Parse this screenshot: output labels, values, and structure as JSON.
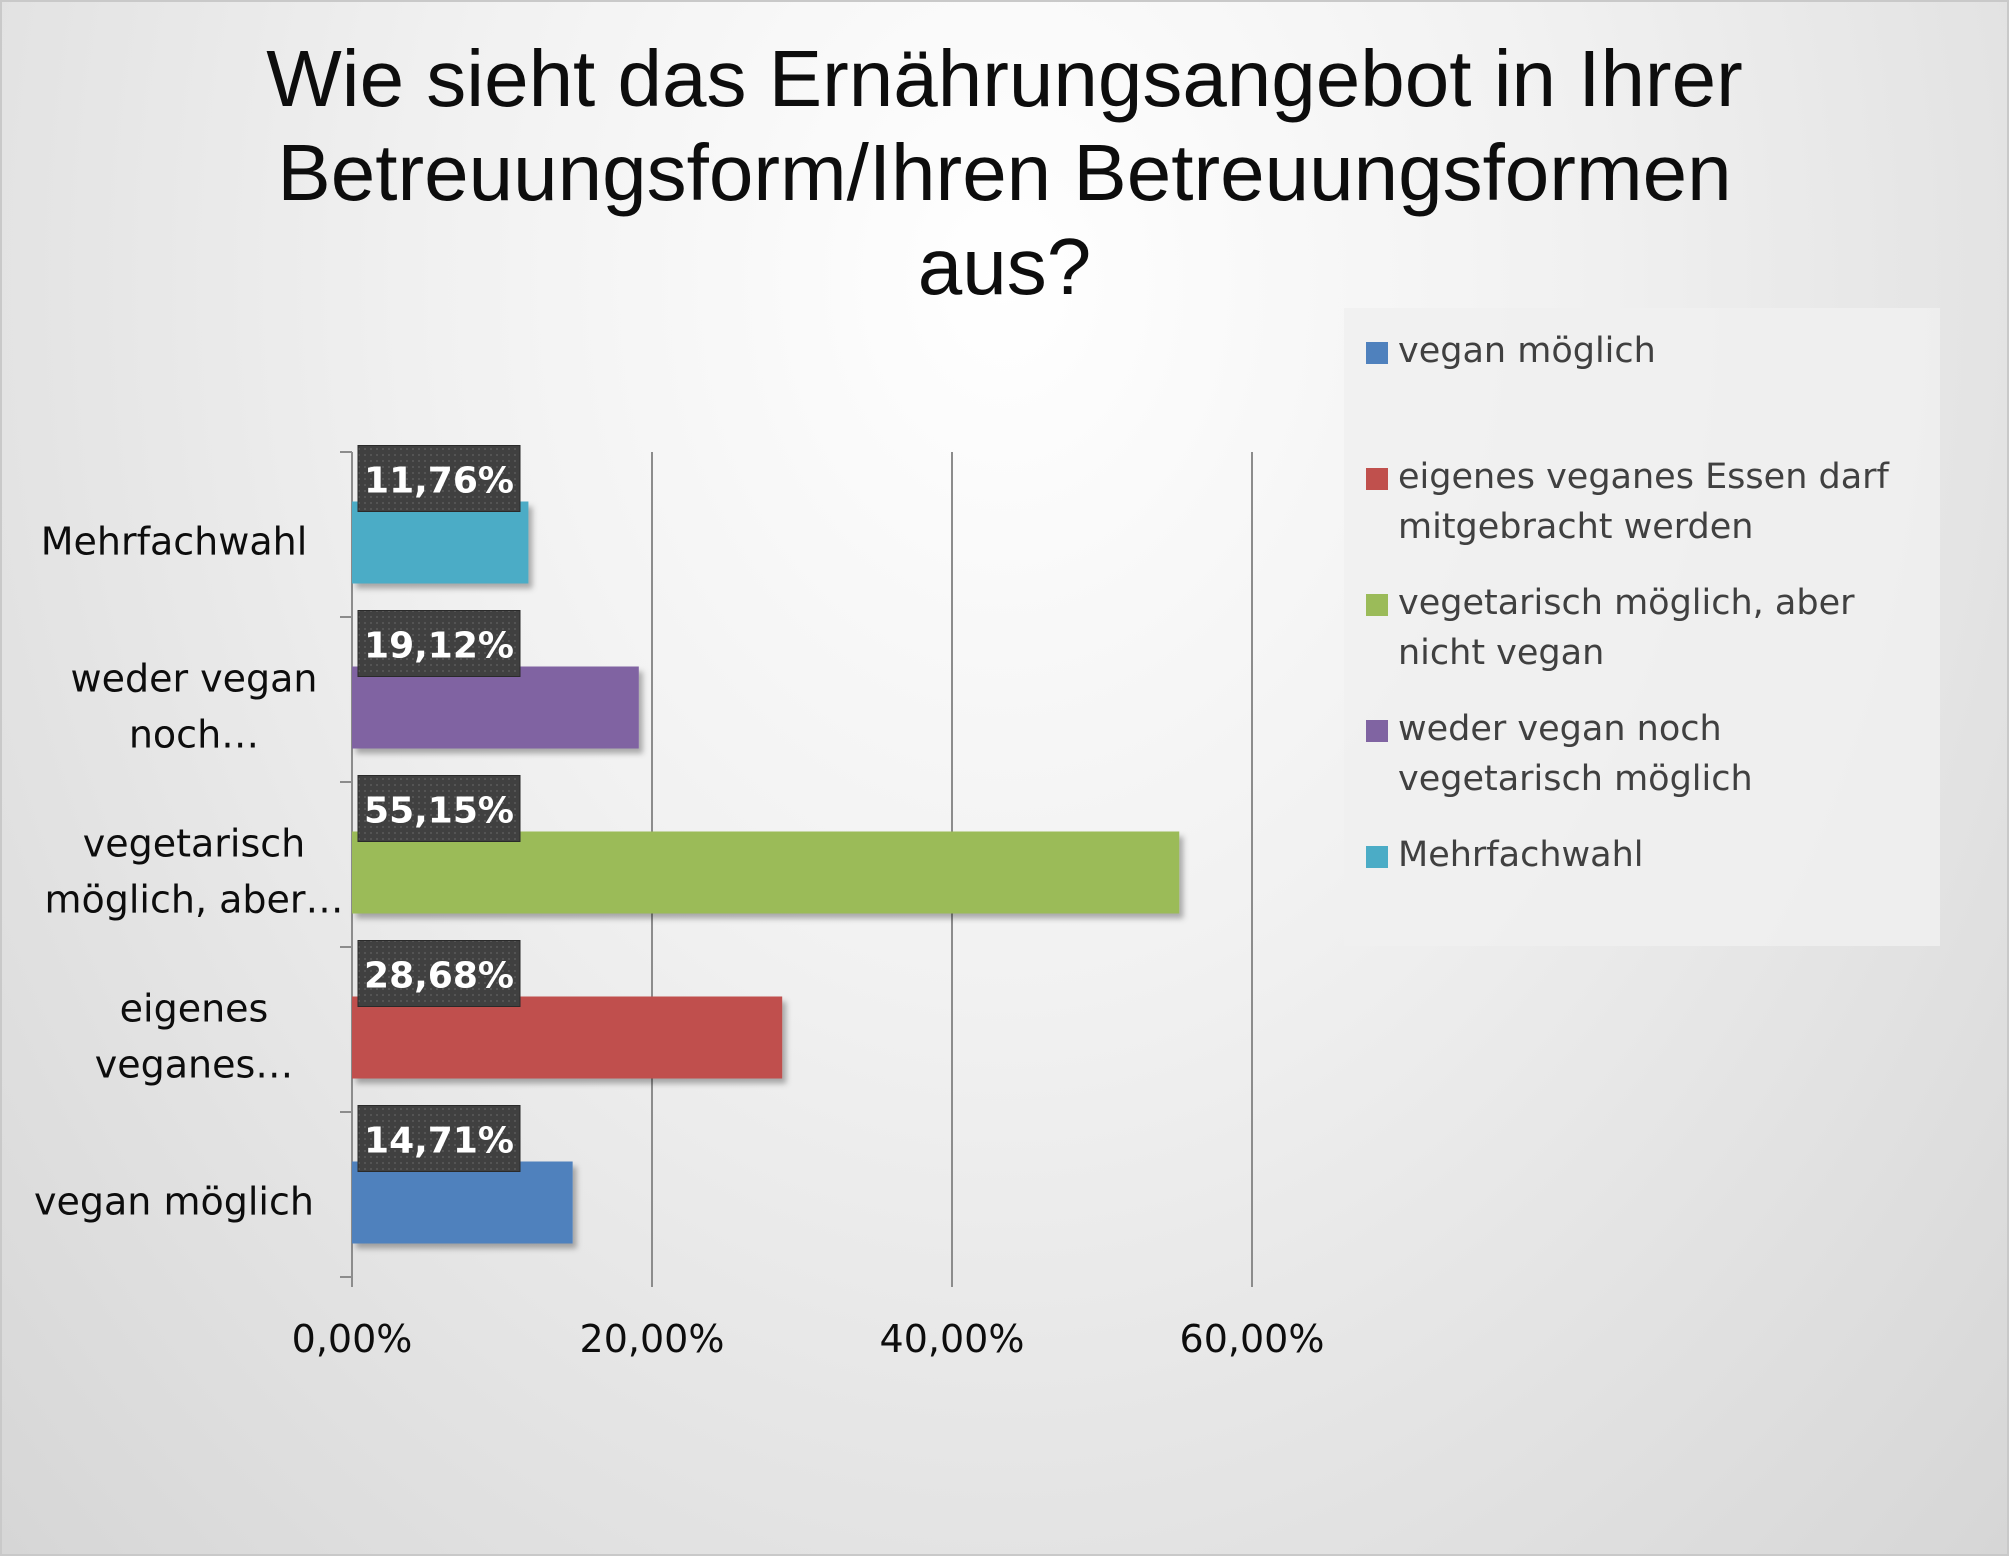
{
  "chart_data": {
    "type": "bar",
    "orientation": "horizontal",
    "title": "Wie sieht das Ernährungsangebot in Ihrer Betreuungsform/Ihren Betreuungsformen aus?",
    "title_lines": [
      "Wie sieht das Ernährungsangebot in Ihrer",
      "Betreuungsform/Ihren Betreuungsformen",
      "aus?"
    ],
    "categories": [
      "vegan möglich",
      "eigenes veganes Essen darf mitgebracht werden",
      "vegetarisch möglich, aber nicht vegan",
      "weder vegan noch vegetarisch möglich",
      "Mehrfachwahl"
    ],
    "category_axis_labels": [
      [
        "vegan möglich"
      ],
      [
        "eigenes",
        "veganes…"
      ],
      [
        "vegetarisch",
        "möglich, aber…"
      ],
      [
        "weder vegan",
        "noch…"
      ],
      [
        "Mehrfachwahl"
      ]
    ],
    "values": [
      14.71,
      28.68,
      55.15,
      19.12,
      11.76
    ],
    "data_labels": [
      "14,71%",
      "28,68%",
      "55,15%",
      "19,12%",
      "11,76%"
    ],
    "colors": [
      "#4f81bd",
      "#c0504d",
      "#9bbb59",
      "#8064a2",
      "#4bacc6"
    ],
    "xlim": [
      0,
      60
    ],
    "x_ticks": [
      0,
      20,
      40,
      60
    ],
    "x_tick_labels": [
      "0,00%",
      "20,00%",
      "40,00%",
      "60,00%"
    ],
    "xlabel": "",
    "ylabel": "",
    "grid": "vertical major gridlines",
    "legend_position": "right",
    "legend": [
      {
        "label": "vegan möglich",
        "color": "#4f81bd"
      },
      {
        "label": "eigenes veganes Essen darf mitgebracht werden",
        "color": "#c0504d"
      },
      {
        "label": "vegetarisch möglich, aber nicht vegan",
        "color": "#9bbb59"
      },
      {
        "label": "weder vegan noch vegetarisch möglich",
        "color": "#8064a2"
      },
      {
        "label": "Mehrfachwahl",
        "color": "#4bacc6"
      }
    ]
  }
}
